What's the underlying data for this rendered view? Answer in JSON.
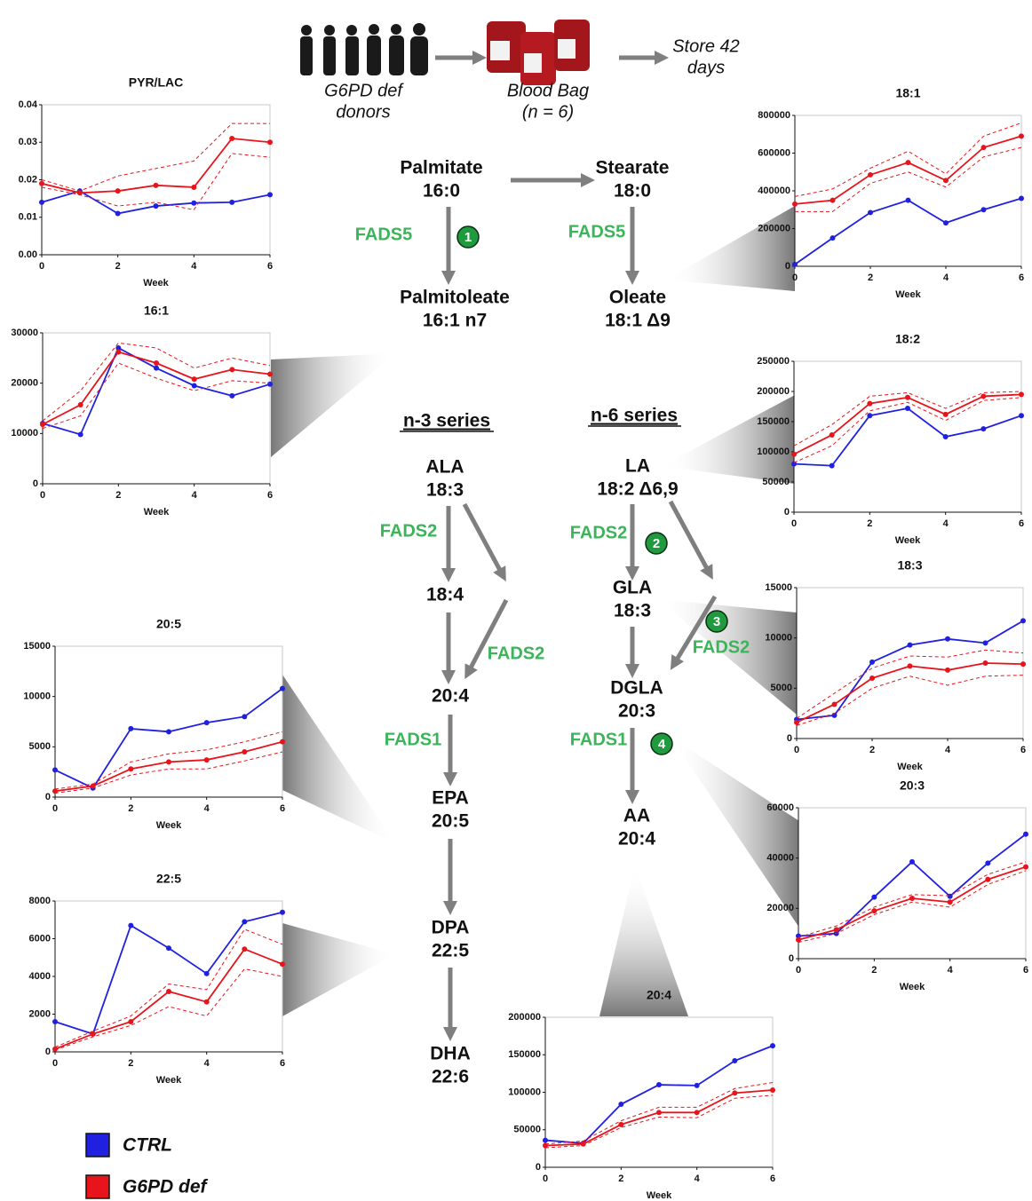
{
  "diagram": {
    "donors": [
      "G6PD def",
      "donors"
    ],
    "bag": [
      "Blood Bag",
      "(n = 6)"
    ],
    "store": [
      "Store 42",
      "days"
    ],
    "nodes": [
      [
        "Palmitate",
        "16:0"
      ],
      [
        "Stearate",
        "18:0"
      ],
      [
        "Palmitoleate",
        "16:1 n7"
      ],
      [
        "Oleate",
        "18:1 Δ9"
      ],
      [
        "ALA",
        "18:3"
      ],
      [
        "LA",
        "18:2 Δ6,9"
      ],
      [
        "18:4"
      ],
      [
        "GLA",
        "18:3"
      ],
      [
        "20:4"
      ],
      [
        "DGLA",
        "20:3"
      ],
      [
        "EPA",
        "20:5"
      ],
      [
        "AA",
        "20:4"
      ],
      [
        "DPA",
        "22:5"
      ],
      [
        "DHA",
        "22:6"
      ]
    ],
    "series_titles": [
      "n-3 series",
      "n-6 series"
    ],
    "enzymes": [
      "FADS5",
      "FADS5",
      "FADS2",
      "FADS2",
      "FADS2",
      "FADS2",
      "FADS1",
      "FADS1"
    ],
    "steps": [
      "1",
      "2",
      "3",
      "4"
    ]
  },
  "chart_data": [
    {
      "type": "line",
      "title": "PYR/LAC",
      "xlabel": "Week",
      "x": [
        0,
        1,
        2,
        3,
        4,
        5,
        6
      ],
      "xlim": [
        0,
        6
      ],
      "xticks": [
        0,
        2,
        4,
        6
      ],
      "ylim": [
        0,
        0.04
      ],
      "yticks": [
        {
          "value": 0,
          "label": "0.00"
        },
        0.01,
        0.02,
        0.03,
        0.04
      ],
      "series": [
        {
          "name": "CTRL",
          "color": "#2020e0",
          "values": [
            0.014,
            0.017,
            0.011,
            0.013,
            0.0138,
            0.014,
            0.016
          ]
        },
        {
          "name": "G6PD def",
          "color": "#e8141c",
          "values": [
            0.019,
            0.0165,
            0.017,
            0.0185,
            0.018,
            0.031,
            0.03
          ],
          "lower": [
            0.018,
            0.016,
            0.013,
            0.014,
            0.012,
            0.027,
            0.026
          ],
          "upper": [
            0.02,
            0.017,
            0.021,
            0.023,
            0.025,
            0.035,
            0.035
          ]
        }
      ]
    },
    {
      "type": "line",
      "title": "16:1",
      "xlabel": "Week",
      "x": [
        0,
        1,
        2,
        3,
        4,
        5,
        6
      ],
      "xlim": [
        0,
        6
      ],
      "xticks": [
        0,
        2,
        4,
        6
      ],
      "ylim": [
        0,
        30000
      ],
      "yticks": [
        0,
        10000,
        20000,
        30000
      ],
      "series": [
        {
          "color": "#2020e0",
          "values": [
            12000,
            9800,
            27000,
            23000,
            19500,
            17500,
            19800
          ]
        },
        {
          "color": "#e8141c",
          "values": [
            11800,
            15700,
            26200,
            24000,
            20800,
            22700,
            21800
          ],
          "lower": [
            11000,
            13500,
            24000,
            21000,
            18500,
            20500,
            20000
          ],
          "upper": [
            12500,
            18500,
            28000,
            27000,
            23000,
            25000,
            23500
          ]
        }
      ]
    },
    {
      "type": "line",
      "title": "20:5",
      "xlabel": "Week",
      "x": [
        0,
        1,
        2,
        3,
        4,
        5,
        6
      ],
      "xlim": [
        0,
        6
      ],
      "xticks": [
        0,
        2,
        4,
        6
      ],
      "ylim": [
        0,
        15000
      ],
      "yticks": [
        0,
        5000,
        10000,
        15000
      ],
      "series": [
        {
          "color": "#2020e0",
          "values": [
            2700,
            900,
            6800,
            6500,
            7400,
            8000,
            10800
          ]
        },
        {
          "color": "#e8141c",
          "values": [
            600,
            1100,
            2800,
            3500,
            3700,
            4500,
            5500
          ],
          "lower": [
            400,
            900,
            2200,
            2800,
            2800,
            3600,
            4500
          ],
          "upper": [
            800,
            1300,
            3500,
            4300,
            4700,
            5500,
            6500
          ]
        }
      ]
    },
    {
      "type": "line",
      "title": "22:5",
      "xlabel": "Week",
      "x": [
        0,
        1,
        2,
        3,
        4,
        5,
        6
      ],
      "xlim": [
        0,
        6
      ],
      "xticks": [
        0,
        2,
        4,
        6
      ],
      "ylim": [
        0,
        8000
      ],
      "yticks": [
        0,
        2000,
        4000,
        6000,
        8000
      ],
      "series": [
        {
          "color": "#2020e0",
          "values": [
            1600,
            950,
            6700,
            5500,
            4150,
            6900,
            7400
          ]
        },
        {
          "color": "#e8141c",
          "values": [
            150,
            950,
            1600,
            3200,
            2650,
            5450,
            4650
          ],
          "lower": [
            100,
            800,
            1400,
            2400,
            1900,
            4400,
            4000
          ],
          "upper": [
            250,
            1100,
            1900,
            3600,
            3300,
            6500,
            5700
          ]
        }
      ]
    },
    {
      "type": "line",
      "title": "18:1",
      "xlabel": "Week",
      "x": [
        0,
        1,
        2,
        3,
        4,
        5,
        6
      ],
      "xlim": [
        0,
        6
      ],
      "xticks": [
        0,
        2,
        4,
        6
      ],
      "ylim": [
        0,
        800000
      ],
      "yticks": [
        0,
        200000,
        400000,
        600000,
        800000
      ],
      "series": [
        {
          "color": "#2020e0",
          "values": [
            10000,
            150000,
            285000,
            350000,
            230000,
            300000,
            360000
          ]
        },
        {
          "color": "#e8141c",
          "values": [
            330000,
            350000,
            485000,
            550000,
            455000,
            630000,
            690000
          ],
          "lower": [
            290000,
            290000,
            440000,
            500000,
            420000,
            580000,
            630000
          ],
          "upper": [
            370000,
            410000,
            520000,
            610000,
            490000,
            690000,
            760000
          ]
        }
      ]
    },
    {
      "type": "line",
      "title": "18:2",
      "xlabel": "Week",
      "x": [
        0,
        1,
        2,
        3,
        4,
        5,
        6
      ],
      "xlim": [
        0,
        6
      ],
      "xticks": [
        0,
        2,
        4,
        6
      ],
      "ylim": [
        0,
        250000
      ],
      "yticks": [
        0,
        50000,
        100000,
        150000,
        200000,
        250000
      ],
      "series": [
        {
          "color": "#2020e0",
          "values": [
            80000,
            77000,
            160000,
            172000,
            125000,
            138000,
            160000
          ]
        },
        {
          "color": "#e8141c",
          "values": [
            96000,
            128000,
            180000,
            190000,
            162000,
            192000,
            195000
          ],
          "lower": [
            82000,
            110000,
            168000,
            182000,
            152000,
            185000,
            190000
          ],
          "upper": [
            110000,
            145000,
            192000,
            198000,
            172000,
            198000,
            200000
          ]
        }
      ]
    },
    {
      "type": "line",
      "title": "18:3",
      "xlabel": "Week",
      "x": [
        0,
        1,
        2,
        3,
        4,
        5,
        6
      ],
      "xlim": [
        0,
        6
      ],
      "xticks": [
        0,
        2,
        4,
        6
      ],
      "ylim": [
        0,
        15000
      ],
      "yticks": [
        0,
        5000,
        10000,
        15000
      ],
      "series": [
        {
          "color": "#2020e0",
          "values": [
            1900,
            2300,
            7600,
            9300,
            9900,
            9500,
            11700
          ]
        },
        {
          "color": "#e8141c",
          "values": [
            1600,
            3400,
            6000,
            7200,
            6800,
            7500,
            7400
          ],
          "lower": [
            1300,
            2500,
            5000,
            6200,
            5300,
            6200,
            6300
          ],
          "upper": [
            2000,
            4500,
            7000,
            8200,
            8100,
            8800,
            8500
          ]
        }
      ]
    },
    {
      "type": "line",
      "title": "20:3",
      "xlabel": "Week",
      "x": [
        0,
        1,
        2,
        3,
        4,
        5,
        6
      ],
      "xlim": [
        0,
        6
      ],
      "xticks": [
        0,
        2,
        4,
        6
      ],
      "ylim": [
        0,
        60000
      ],
      "yticks": [
        0,
        20000,
        40000,
        60000
      ],
      "series": [
        {
          "color": "#2020e0",
          "values": [
            9000,
            10000,
            24500,
            38500,
            24800,
            38000,
            49500
          ]
        },
        {
          "color": "#e8141c",
          "values": [
            7500,
            11500,
            19000,
            24000,
            22500,
            31500,
            36500
          ],
          "lower": [
            6500,
            10000,
            17500,
            22500,
            20500,
            29500,
            35000
          ],
          "upper": [
            8500,
            13000,
            20500,
            25500,
            25000,
            33500,
            38500
          ]
        }
      ]
    },
    {
      "type": "line",
      "title": "20:4",
      "xlabel": "Week",
      "x": [
        0,
        1,
        2,
        3,
        4,
        5,
        6
      ],
      "xlim": [
        0,
        6
      ],
      "xticks": [
        0,
        2,
        4,
        6
      ],
      "ylim": [
        0,
        200000
      ],
      "yticks": [
        0,
        50000,
        100000,
        150000,
        200000
      ],
      "series": [
        {
          "color": "#2020e0",
          "values": [
            36000,
            32000,
            84000,
            110000,
            109000,
            142000,
            162000
          ]
        },
        {
          "color": "#e8141c",
          "values": [
            29000,
            31000,
            57000,
            73000,
            73000,
            99000,
            103000
          ],
          "lower": [
            26000,
            29000,
            53000,
            67000,
            66000,
            92000,
            96000
          ],
          "upper": [
            31000,
            35000,
            62000,
            80000,
            80000,
            105000,
            113000
          ]
        }
      ]
    }
  ]
}
